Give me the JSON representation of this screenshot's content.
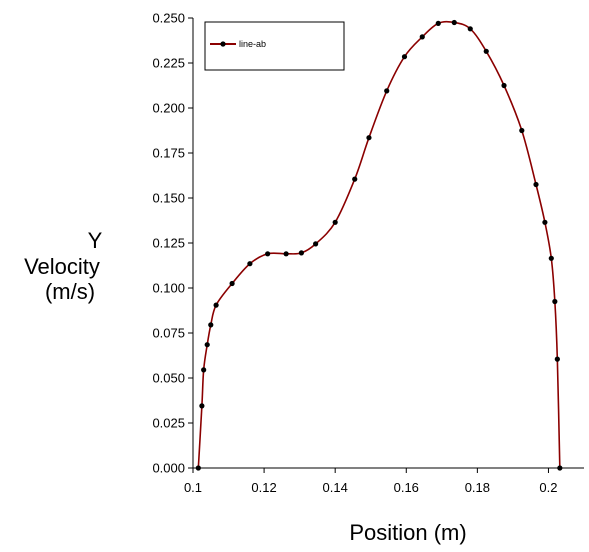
{
  "chart_data": {
    "type": "line",
    "title": "",
    "xlabel": "Position (m)",
    "ylabel_lines": [
      "Y",
      "Velocity",
      "(m/s)"
    ],
    "xlim": [
      0.1,
      0.21
    ],
    "ylim": [
      0,
      0.25
    ],
    "x_ticks": [
      0.1,
      0.12,
      0.14,
      0.16,
      0.18,
      0.2
    ],
    "x_tick_labels": [
      "0.1",
      "0.12",
      "0.14",
      "0.16",
      "0.18",
      "0.2"
    ],
    "y_ticks": [
      0,
      0.025,
      0.05,
      0.075,
      0.1,
      0.125,
      0.15,
      0.175,
      0.2,
      0.225,
      0.25
    ],
    "y_tick_labels": [
      "0.000",
      "0.025",
      "0.050",
      "0.075",
      "0.100",
      "0.125",
      "0.150",
      "0.175",
      "0.200",
      "0.225",
      "0.250"
    ],
    "grid": false,
    "legend_position": "top-left",
    "series": [
      {
        "name": "line-ab",
        "color": "#8b0000",
        "marker_color": "#000000",
        "x": [
          0.1015,
          0.1025,
          0.103,
          0.104,
          0.105,
          0.1065,
          0.111,
          0.116,
          0.121,
          0.1262,
          0.1305,
          0.1345,
          0.14,
          0.1455,
          0.1495,
          0.1545,
          0.1595,
          0.1645,
          0.169,
          0.1735,
          0.178,
          0.1825,
          0.1875,
          0.1925,
          0.1965,
          0.199,
          0.2008,
          0.2018,
          0.2025,
          0.2032
        ],
        "y": [
          0.0,
          0.0345,
          0.0545,
          0.0685,
          0.0795,
          0.0905,
          0.1025,
          0.1135,
          0.119,
          0.119,
          0.1195,
          0.1245,
          0.1365,
          0.1605,
          0.1835,
          0.2095,
          0.2285,
          0.2395,
          0.247,
          0.2475,
          0.244,
          0.2315,
          0.2125,
          0.1875,
          0.1575,
          0.1365,
          0.1165,
          0.0925,
          0.0605,
          0.0
        ]
      }
    ]
  }
}
